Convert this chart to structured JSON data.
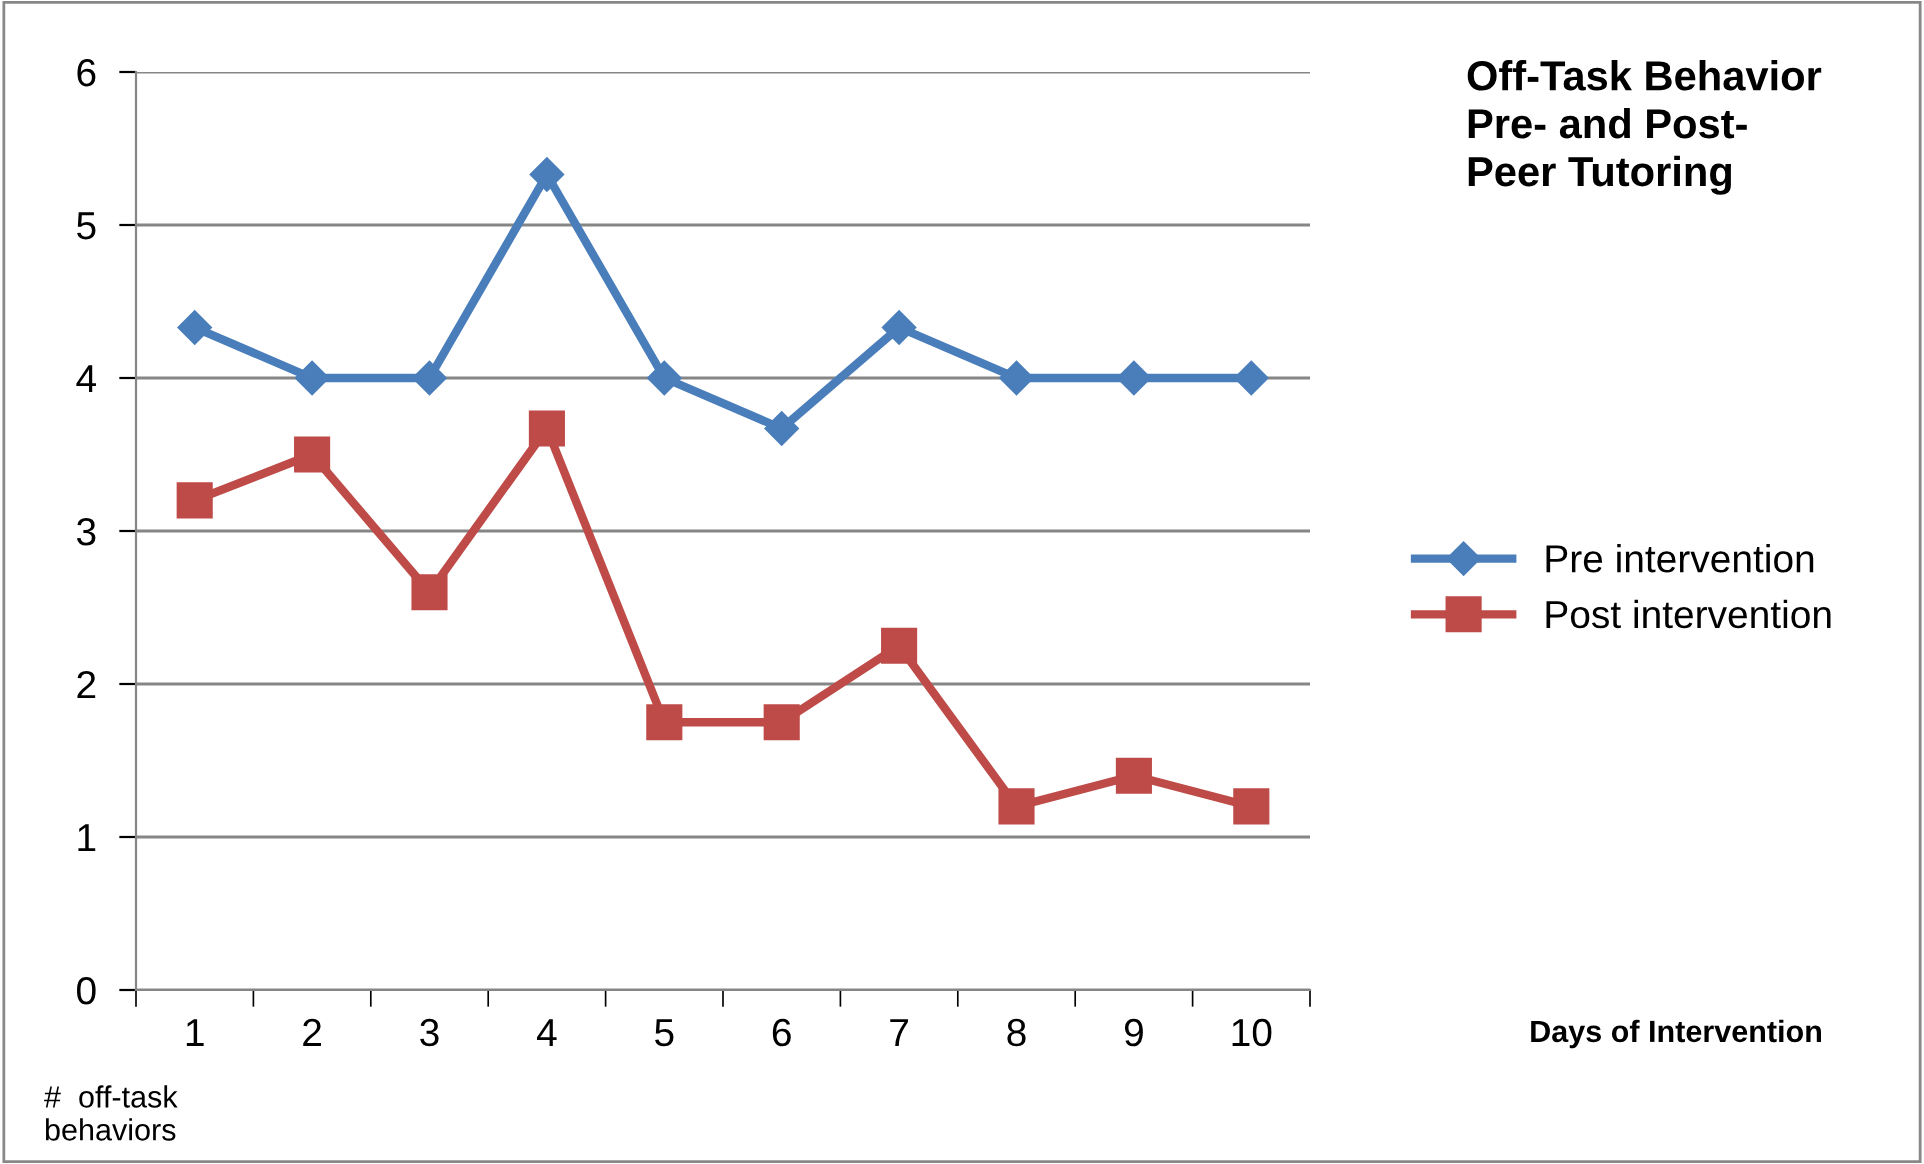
{
  "chart_data": {
    "type": "line",
    "title": "Off-Task Behavior\nPre- and Post-\nPeer Tutoring",
    "annotations": [
      "Days of Intervention"
    ],
    "ylabel": "#  off-task\nbehaviors",
    "categories": [
      "1",
      "2",
      "3",
      "4",
      "5",
      "6",
      "7",
      "8",
      "9",
      "10"
    ],
    "series": [
      {
        "name": "Pre intervention",
        "color": "#4a7ebb",
        "marker": "diamond",
        "values": [
          4.33,
          4,
          4,
          5.33,
          4,
          3.67,
          4.33,
          4,
          4,
          4
        ]
      },
      {
        "name": "Post intervention",
        "color": "#be4b48",
        "marker": "square",
        "values": [
          3.2,
          3.5,
          2.6,
          3.67,
          1.75,
          1.75,
          2.25,
          1.2,
          1.4,
          1.2
        ]
      }
    ],
    "ylim": [
      0,
      6
    ],
    "yticks": [
      0,
      1,
      2,
      3,
      4,
      5,
      6
    ],
    "grid": "y",
    "legend": "right",
    "line_style": "solid"
  }
}
